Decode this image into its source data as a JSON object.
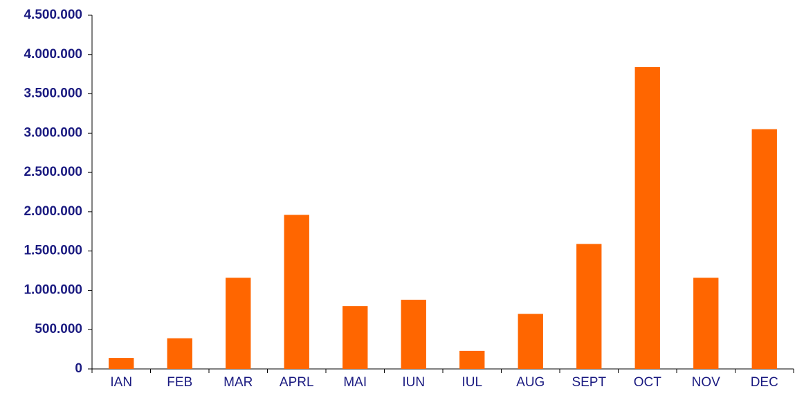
{
  "chart_data": {
    "type": "bar",
    "categories": [
      "IAN",
      "FEB",
      "MAR",
      "APRL",
      "MAI",
      "IUN",
      "IUL",
      "AUG",
      "SEPT",
      "OCT",
      "NOV",
      "DEC"
    ],
    "values": [
      140000,
      390000,
      1160000,
      1960000,
      800000,
      880000,
      230000,
      700000,
      1590000,
      3840000,
      1160000,
      3050000
    ],
    "color": "#ff6600",
    "ylim": [
      0,
      4500000
    ],
    "yticks": [
      0,
      {
        "value": 500000,
        "label": "500.000"
      },
      {
        "value": 1000000,
        "label": "1.000.000"
      },
      {
        "value": 1500000,
        "label": "1.500.000"
      },
      {
        "value": 2000000,
        "label": "2.000.000"
      },
      {
        "value": 2500000,
        "label": "2.500.000"
      },
      {
        "value": 3000000,
        "label": "3.000.000"
      },
      {
        "value": 3500000,
        "label": "3.500.000"
      },
      {
        "value": 4000000,
        "label": "4.000.000"
      },
      {
        "value": 4500000,
        "label": "4.500.000"
      }
    ],
    "grid": false
  }
}
